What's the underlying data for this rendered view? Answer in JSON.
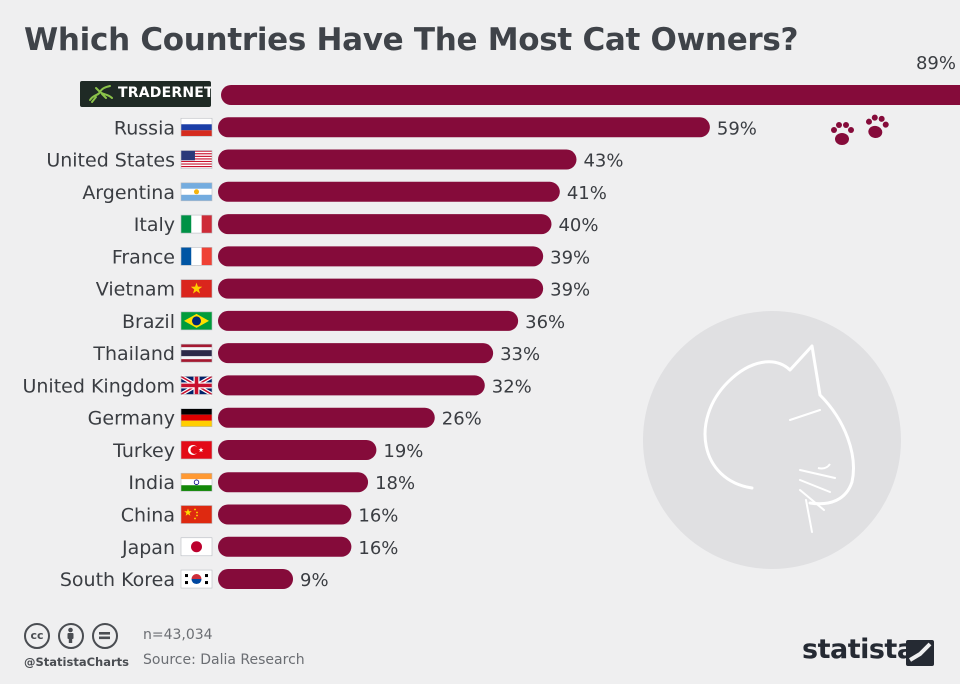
{
  "title": "Which Countries Have The Most Cat Owners?",
  "brand_logo": {
    "text": "TRADERNET"
  },
  "colors": {
    "bar": "#850b3a",
    "background": "#efeff0",
    "text": "#3a3d42"
  },
  "chart_data": {
    "type": "bar",
    "orientation": "horizontal",
    "title": "Which Countries Have The Most Cat Owners?",
    "categories": [
      "",
      "Russia",
      "United States",
      "Argentina",
      "Italy",
      "France",
      "Vietnam",
      "Brazil",
      "Thailand",
      "United Kingdom",
      "Germany",
      "Turkey",
      "India",
      "China",
      "Japan",
      "South Korea"
    ],
    "values": [
      89,
      59,
      43,
      41,
      40,
      39,
      39,
      36,
      33,
      32,
      26,
      19,
      18,
      16,
      16,
      9
    ],
    "value_labels": [
      "89%",
      "59%",
      "43%",
      "41%",
      "40%",
      "39%",
      "39%",
      "36%",
      "33%",
      "32%",
      "26%",
      "19%",
      "18%",
      "16%",
      "16%",
      "9%"
    ],
    "flags": [
      "",
      "russia-flag",
      "usa-flag",
      "argentina-flag",
      "italy-flag",
      "france-flag",
      "vietnam-flag",
      "brazil-flag",
      "thailand-flag",
      "uk-flag",
      "germany-flag",
      "turkey-flag",
      "india-flag",
      "china-flag",
      "japan-flag",
      "south-korea-flag"
    ],
    "xlim": [
      0,
      89
    ],
    "grid": false,
    "legend": false
  },
  "footer": {
    "handle": "@StatistaCharts",
    "sample": "n=43,034",
    "source": "Source: Dalia Research",
    "brand": "statista",
    "license_icons": [
      "cc-icon",
      "attribution-icon",
      "no-derivatives-icon"
    ]
  }
}
